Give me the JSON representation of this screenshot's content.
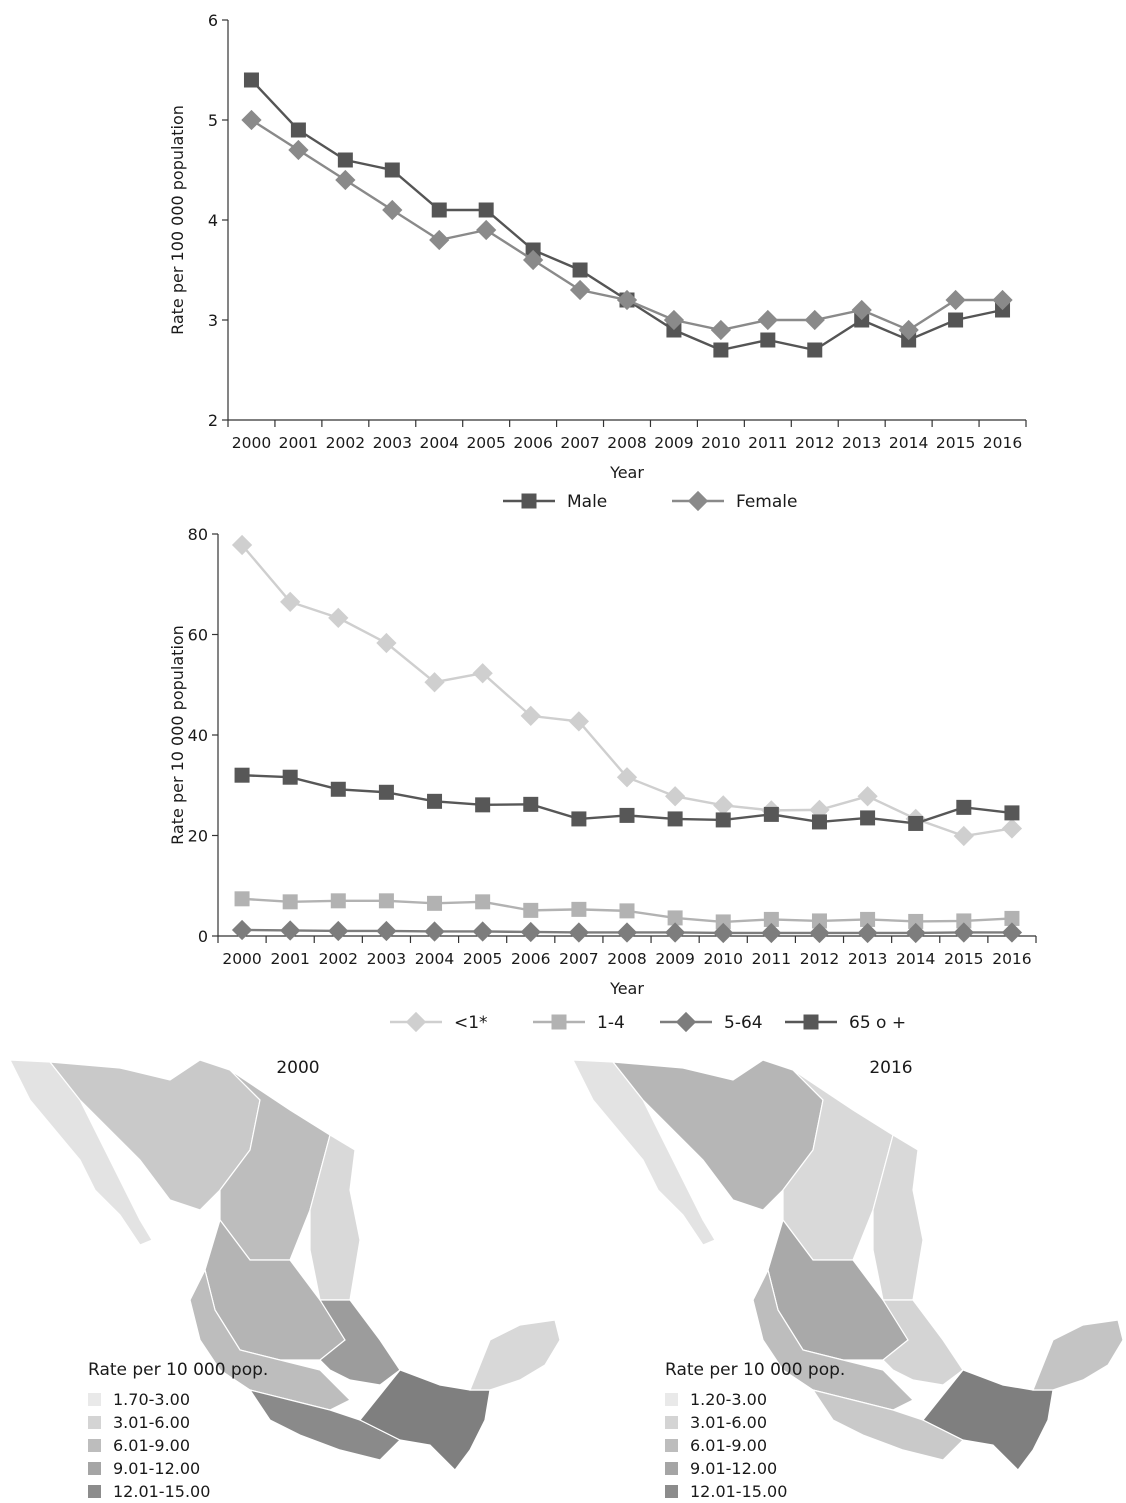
{
  "charts": {
    "chart_data": [
      {
        "type": "line",
        "xlabel": "Year",
        "ylabel": "Rate per 100 000 population",
        "ylim": [
          2,
          6
        ],
        "yticks": [
          2,
          3,
          4,
          5,
          6
        ],
        "categories": [
          "2000",
          "2001",
          "2002",
          "2003",
          "2004",
          "2005",
          "2006",
          "2007",
          "2008",
          "2009",
          "2010",
          "2011",
          "2012",
          "2013",
          "2014",
          "2015",
          "2016"
        ],
        "legend_position": "bottom",
        "grid": false,
        "series": [
          {
            "name": "Male",
            "marker": "square",
            "color": "#555555",
            "values": [
              5.4,
              4.9,
              4.6,
              4.5,
              4.1,
              4.1,
              3.7,
              3.5,
              3.2,
              2.9,
              2.7,
              2.8,
              2.7,
              3.0,
              2.8,
              3.0,
              3.1
            ]
          },
          {
            "name": "Female",
            "marker": "diamond",
            "color": "#8a8a8a",
            "values": [
              5.0,
              4.7,
              4.4,
              4.1,
              3.8,
              3.9,
              3.6,
              3.3,
              3.2,
              3.0,
              2.9,
              3.0,
              3.0,
              3.1,
              2.9,
              3.2,
              3.2
            ]
          }
        ]
      },
      {
        "type": "line",
        "xlabel": "Year",
        "ylabel": "Rate per 10 000 population",
        "ylim": [
          0,
          80
        ],
        "yticks": [
          0,
          20,
          40,
          60,
          80
        ],
        "categories": [
          "2000",
          "2001",
          "2002",
          "2003",
          "2004",
          "2005",
          "2006",
          "2007",
          "2008",
          "2009",
          "2010",
          "2011",
          "2012",
          "2013",
          "2014",
          "2015",
          "2016"
        ],
        "legend_position": "bottom",
        "grid": false,
        "series": [
          {
            "name": "<1*",
            "marker": "diamond",
            "color": "#cfcfcf",
            "values": [
              77.8,
              66.5,
              63.3,
              58.3,
              50.5,
              52.3,
              43.8,
              42.7,
              31.6,
              27.8,
              26.0,
              25.0,
              25.1,
              27.8,
              23.3,
              19.9,
              21.4
            ]
          },
          {
            "name": "1-4",
            "marker": "square",
            "color": "#b2b2b2",
            "values": [
              7.4,
              6.8,
              7.0,
              7.0,
              6.5,
              6.8,
              5.1,
              5.3,
              5.0,
              3.6,
              2.8,
              3.3,
              3.0,
              3.3,
              2.9,
              3.0,
              3.5
            ]
          },
          {
            "name": "5-64",
            "marker": "diamond",
            "color": "#7d7d7d",
            "values": [
              1.2,
              1.1,
              1.0,
              1.0,
              0.9,
              0.9,
              0.8,
              0.7,
              0.7,
              0.7,
              0.6,
              0.6,
              0.6,
              0.6,
              0.6,
              0.7,
              0.7
            ]
          },
          {
            "name": "65 o +",
            "marker": "square",
            "color": "#575757",
            "values": [
              32.0,
              31.6,
              29.2,
              28.6,
              26.8,
              26.1,
              26.2,
              23.3,
              24.0,
              23.3,
              23.1,
              24.2,
              22.7,
              23.5,
              22.4,
              25.6,
              24.5
            ]
          }
        ]
      }
    ]
  },
  "maps": [
    {
      "year": "2000",
      "legend_title": "Rate per 10 000 pop.",
      "legend": [
        {
          "label": "1.70-3.00",
          "color": "#e9e9e9"
        },
        {
          "label": "3.01-6.00",
          "color": "#d4d4d4"
        },
        {
          "label": "6.01-9.00",
          "color": "#bdbdbd"
        },
        {
          "label": "9.01-12.00",
          "color": "#a5a5a5"
        },
        {
          "label": "12.01-15.00",
          "color": "#8c8c8c"
        }
      ]
    },
    {
      "year": "2016",
      "legend_title": "Rate per 10 000 pop.",
      "legend": [
        {
          "label": "1.20-3.00",
          "color": "#e9e9e9"
        },
        {
          "label": "3.01-6.00",
          "color": "#d4d4d4"
        },
        {
          "label": "6.01-9.00",
          "color": "#bdbdbd"
        },
        {
          "label": "9.01-12.00",
          "color": "#a5a5a5"
        },
        {
          "label": "12.01-15.00",
          "color": "#8c8c8c"
        }
      ]
    }
  ]
}
